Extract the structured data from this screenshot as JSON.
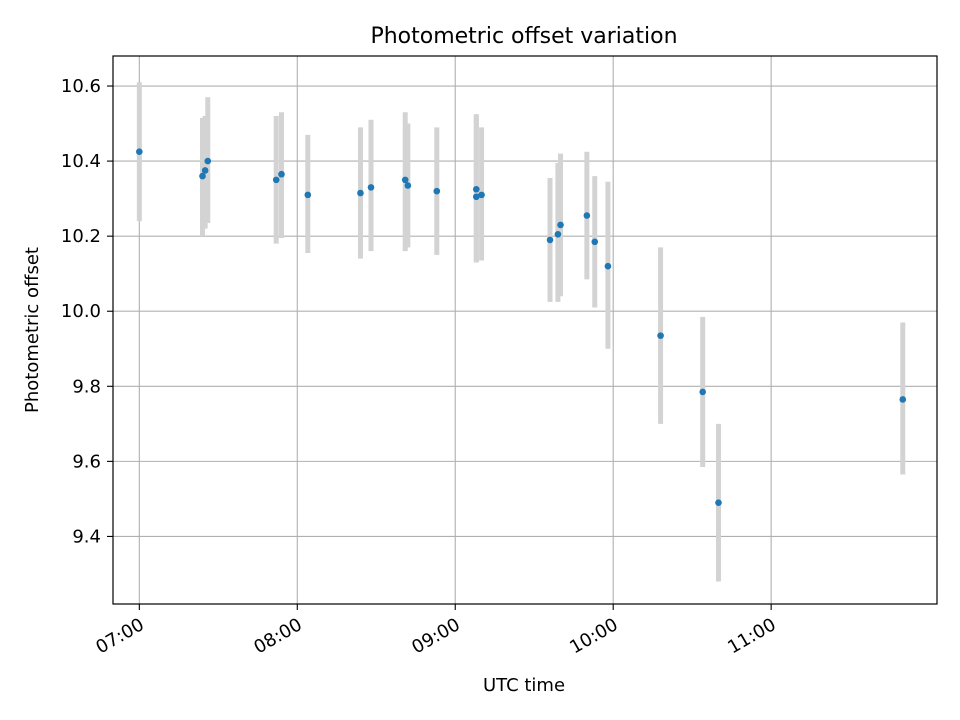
{
  "chart_data": {
    "type": "scatter",
    "title": "Photometric offset variation",
    "xlabel": "UTC time",
    "ylabel": "Photometric offset",
    "x_ticks": [
      "07:00",
      "08:00",
      "09:00",
      "10:00",
      "11:00"
    ],
    "y_ticks": [
      "9.4",
      "9.6",
      "9.8",
      "10.0",
      "10.2",
      "10.4",
      "10.6"
    ],
    "ylim": [
      9.22,
      10.68
    ],
    "xlim": [
      "06:50",
      "12:03"
    ],
    "grid": true,
    "point_color": "#1f77b4",
    "errorbar_color": "#d3d3d3",
    "points": [
      {
        "t": "07:00",
        "y": 10.425,
        "lo": 10.24,
        "hi": 10.61
      },
      {
        "t": "07:24",
        "y": 10.36,
        "lo": 10.2,
        "hi": 10.515
      },
      {
        "t": "07:25",
        "y": 10.375,
        "lo": 10.22,
        "hi": 10.52
      },
      {
        "t": "07:26",
        "y": 10.4,
        "lo": 10.235,
        "hi": 10.57
      },
      {
        "t": "07:52",
        "y": 10.35,
        "lo": 10.18,
        "hi": 10.52
      },
      {
        "t": "07:54",
        "y": 10.365,
        "lo": 10.195,
        "hi": 10.53
      },
      {
        "t": "08:04",
        "y": 10.31,
        "lo": 10.155,
        "hi": 10.47
      },
      {
        "t": "08:24",
        "y": 10.315,
        "lo": 10.14,
        "hi": 10.49
      },
      {
        "t": "08:28",
        "y": 10.33,
        "lo": 10.16,
        "hi": 10.51
      },
      {
        "t": "08:41",
        "y": 10.35,
        "lo": 10.16,
        "hi": 10.53
      },
      {
        "t": "08:42",
        "y": 10.335,
        "lo": 10.17,
        "hi": 10.5
      },
      {
        "t": "08:53",
        "y": 10.32,
        "lo": 10.15,
        "hi": 10.49
      },
      {
        "t": "09:08",
        "y": 10.325,
        "lo": 10.13,
        "hi": 10.525
      },
      {
        "t": "09:08",
        "y": 10.305,
        "lo": 10.13,
        "hi": 10.52
      },
      {
        "t": "09:10",
        "y": 10.31,
        "lo": 10.135,
        "hi": 10.49
      },
      {
        "t": "09:36",
        "y": 10.19,
        "lo": 10.025,
        "hi": 10.355
      },
      {
        "t": "09:39",
        "y": 10.205,
        "lo": 10.025,
        "hi": 10.395
      },
      {
        "t": "09:40",
        "y": 10.23,
        "lo": 10.04,
        "hi": 10.42
      },
      {
        "t": "09:50",
        "y": 10.255,
        "lo": 10.085,
        "hi": 10.425
      },
      {
        "t": "09:53",
        "y": 10.185,
        "lo": 10.01,
        "hi": 10.36
      },
      {
        "t": "09:58",
        "y": 10.12,
        "lo": 9.9,
        "hi": 10.345
      },
      {
        "t": "10:18",
        "y": 9.935,
        "lo": 9.7,
        "hi": 10.17
      },
      {
        "t": "10:34",
        "y": 9.785,
        "lo": 9.585,
        "hi": 9.985
      },
      {
        "t": "10:40",
        "y": 9.49,
        "lo": 9.28,
        "hi": 9.7
      },
      {
        "t": "11:50",
        "y": 9.765,
        "lo": 9.565,
        "hi": 9.97
      }
    ]
  }
}
